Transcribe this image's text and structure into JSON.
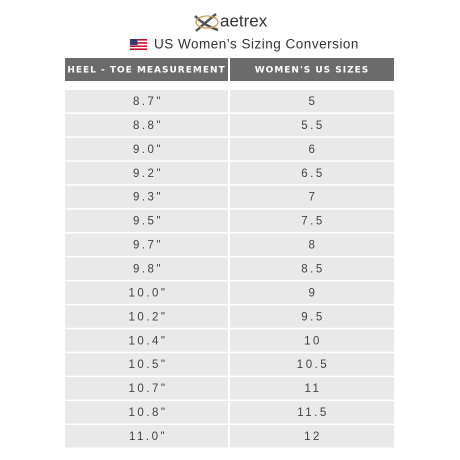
{
  "header": {
    "logo": "aetrex",
    "title": "US Women’s Sizing Conversion"
  },
  "table": {
    "columns": [
      "HEEL - TOE MEASUREMENT",
      "WOMEN'S US SIZES"
    ],
    "rows": [
      [
        "8.7\"",
        "5"
      ],
      [
        "8.8\"",
        "5.5"
      ],
      [
        "9.0\"",
        "6"
      ],
      [
        "9.2\"",
        "6.5"
      ],
      [
        "9.3\"",
        "7"
      ],
      [
        "9.5\"",
        "7.5"
      ],
      [
        "9.7\"",
        "8"
      ],
      [
        "9.8\"",
        "8.5"
      ],
      [
        "10.0\"",
        "9"
      ],
      [
        "10.2\"",
        "9.5"
      ],
      [
        "10.4\"",
        "10"
      ],
      [
        "10.5\"",
        "10.5"
      ],
      [
        "10.7\"",
        "11"
      ],
      [
        "10.8\"",
        "11.5"
      ],
      [
        "11.0\"",
        "12"
      ]
    ]
  }
}
